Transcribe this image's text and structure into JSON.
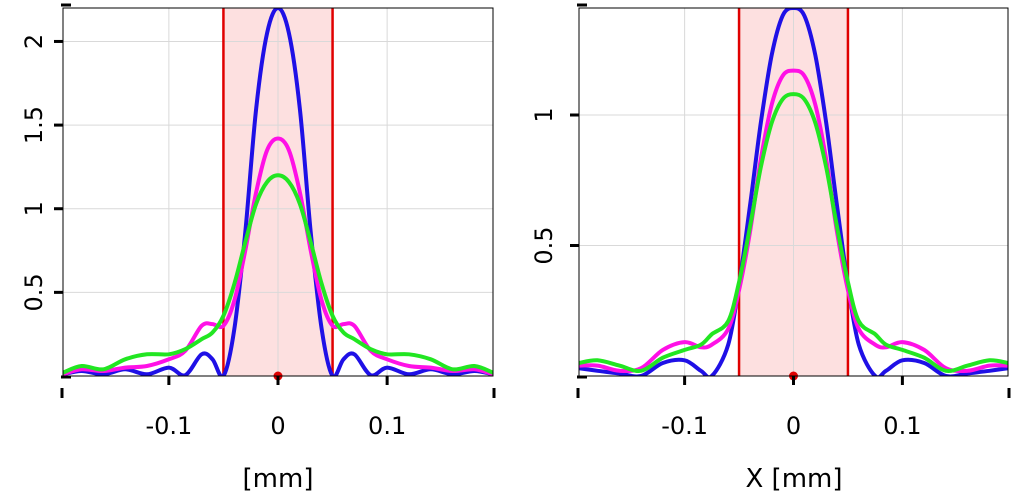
{
  "colors": {
    "blue": "#1f10e6",
    "magenta": "#ff10e6",
    "green": "#22e622",
    "red": "#e00000",
    "window_fill": "#fde0e0",
    "grid": "#d9d9d9"
  },
  "chart_data": [
    {
      "type": "line",
      "title": "",
      "xlabel": "[mm]",
      "ylabel": "",
      "xlim": [
        -0.197,
        0.197
      ],
      "ylim": [
        0,
        2.2
      ],
      "x_ticks": [
        -0.1,
        0,
        0.1
      ],
      "x_tick_labels": [
        "-0.1",
        "0",
        "0.1"
      ],
      "y_ticks": [
        0.5,
        1,
        1.5,
        2
      ],
      "y_tick_labels": [
        "0.5",
        "1",
        "1.5",
        "2"
      ],
      "window": [
        -0.05,
        0.05
      ],
      "center_marker": {
        "x": 0,
        "y": 0
      },
      "series": [
        {
          "name": "blue",
          "color": "#1f10e6",
          "x": [
            -0.197,
            -0.18,
            -0.16,
            -0.14,
            -0.12,
            -0.1,
            -0.085,
            -0.07,
            -0.06,
            -0.05,
            -0.04,
            -0.03,
            -0.02,
            -0.01,
            0,
            0.01,
            0.02,
            0.03,
            0.04,
            0.05,
            0.06,
            0.07,
            0.085,
            0.1,
            0.12,
            0.14,
            0.16,
            0.18,
            0.197
          ],
          "y": [
            0.01,
            0.03,
            0.01,
            0.04,
            0.01,
            0.05,
            0.005,
            0.13,
            0.1,
            0.0,
            0.28,
            0.86,
            1.6,
            2.05,
            2.2,
            2.05,
            1.6,
            0.86,
            0.28,
            0.0,
            0.1,
            0.13,
            0.005,
            0.05,
            0.01,
            0.04,
            0.01,
            0.03,
            0.01
          ]
        },
        {
          "name": "magenta",
          "color": "#ff10e6",
          "x": [
            -0.197,
            -0.18,
            -0.16,
            -0.14,
            -0.12,
            -0.1,
            -0.085,
            -0.07,
            -0.06,
            -0.05,
            -0.04,
            -0.03,
            -0.02,
            -0.01,
            0,
            0.01,
            0.02,
            0.03,
            0.04,
            0.05,
            0.06,
            0.07,
            0.085,
            0.1,
            0.12,
            0.14,
            0.16,
            0.18,
            0.197
          ],
          "y": [
            0.01,
            0.04,
            0.03,
            0.05,
            0.06,
            0.1,
            0.15,
            0.3,
            0.31,
            0.3,
            0.45,
            0.75,
            1.1,
            1.35,
            1.42,
            1.35,
            1.1,
            0.75,
            0.45,
            0.3,
            0.31,
            0.3,
            0.15,
            0.1,
            0.06,
            0.05,
            0.03,
            0.04,
            0.01
          ]
        },
        {
          "name": "green",
          "color": "#22e622",
          "x": [
            -0.197,
            -0.18,
            -0.16,
            -0.14,
            -0.12,
            -0.1,
            -0.085,
            -0.07,
            -0.06,
            -0.05,
            -0.04,
            -0.03,
            -0.02,
            -0.01,
            0,
            0.01,
            0.02,
            0.03,
            0.04,
            0.05,
            0.06,
            0.07,
            0.085,
            0.1,
            0.12,
            0.14,
            0.16,
            0.18,
            0.197
          ],
          "y": [
            0.02,
            0.06,
            0.04,
            0.1,
            0.13,
            0.13,
            0.16,
            0.22,
            0.26,
            0.36,
            0.55,
            0.8,
            1.03,
            1.16,
            1.2,
            1.16,
            1.03,
            0.8,
            0.55,
            0.36,
            0.26,
            0.22,
            0.16,
            0.13,
            0.13,
            0.1,
            0.04,
            0.06,
            0.02
          ]
        }
      ]
    },
    {
      "type": "line",
      "title": "",
      "xlabel": "X [mm]",
      "ylabel": "",
      "xlim": [
        -0.197,
        0.197
      ],
      "ylim": [
        0,
        1.41
      ],
      "x_ticks": [
        -0.1,
        0,
        0.1
      ],
      "x_tick_labels": [
        "-0.1",
        "0",
        "0.1"
      ],
      "y_ticks": [
        0.5,
        1
      ],
      "y_tick_labels": [
        "0.5",
        "1"
      ],
      "window": [
        -0.05,
        0.05
      ],
      "center_marker": {
        "x": 0,
        "y": 0
      },
      "series": [
        {
          "name": "blue",
          "color": "#1f10e6",
          "x": [
            -0.197,
            -0.18,
            -0.16,
            -0.14,
            -0.12,
            -0.1,
            -0.085,
            -0.075,
            -0.06,
            -0.05,
            -0.04,
            -0.03,
            -0.02,
            -0.01,
            0,
            0.01,
            0.02,
            0.03,
            0.04,
            0.05,
            0.06,
            0.075,
            0.085,
            0.1,
            0.12,
            0.14,
            0.16,
            0.18,
            0.197
          ],
          "y": [
            0.03,
            0.02,
            0.01,
            0.0,
            0.05,
            0.06,
            0.02,
            0.0,
            0.12,
            0.35,
            0.65,
            0.97,
            1.23,
            1.38,
            1.41,
            1.38,
            1.23,
            0.97,
            0.65,
            0.35,
            0.12,
            0.0,
            0.02,
            0.06,
            0.05,
            0.0,
            0.01,
            0.02,
            0.03
          ]
        },
        {
          "name": "magenta",
          "color": "#ff10e6",
          "x": [
            -0.197,
            -0.18,
            -0.16,
            -0.14,
            -0.12,
            -0.1,
            -0.085,
            -0.075,
            -0.06,
            -0.05,
            -0.04,
            -0.03,
            -0.02,
            -0.01,
            0,
            0.01,
            0.02,
            0.03,
            0.04,
            0.05,
            0.06,
            0.075,
            0.085,
            0.1,
            0.12,
            0.14,
            0.16,
            0.18,
            0.197
          ],
          "y": [
            0.04,
            0.04,
            0.02,
            0.03,
            0.1,
            0.13,
            0.11,
            0.12,
            0.18,
            0.33,
            0.55,
            0.83,
            1.04,
            1.15,
            1.17,
            1.15,
            1.04,
            0.83,
            0.55,
            0.33,
            0.18,
            0.12,
            0.11,
            0.13,
            0.1,
            0.03,
            0.02,
            0.04,
            0.04
          ]
        },
        {
          "name": "green",
          "color": "#22e622",
          "x": [
            -0.197,
            -0.18,
            -0.16,
            -0.14,
            -0.12,
            -0.1,
            -0.085,
            -0.075,
            -0.06,
            -0.05,
            -0.04,
            -0.03,
            -0.02,
            -0.01,
            0,
            0.01,
            0.02,
            0.03,
            0.04,
            0.05,
            0.06,
            0.075,
            0.085,
            0.1,
            0.12,
            0.14,
            0.16,
            0.18,
            0.197
          ],
          "y": [
            0.05,
            0.06,
            0.04,
            0.02,
            0.07,
            0.1,
            0.12,
            0.16,
            0.21,
            0.36,
            0.57,
            0.8,
            0.97,
            1.06,
            1.08,
            1.06,
            0.97,
            0.8,
            0.57,
            0.36,
            0.21,
            0.16,
            0.12,
            0.1,
            0.07,
            0.02,
            0.04,
            0.06,
            0.05
          ]
        }
      ]
    }
  ]
}
